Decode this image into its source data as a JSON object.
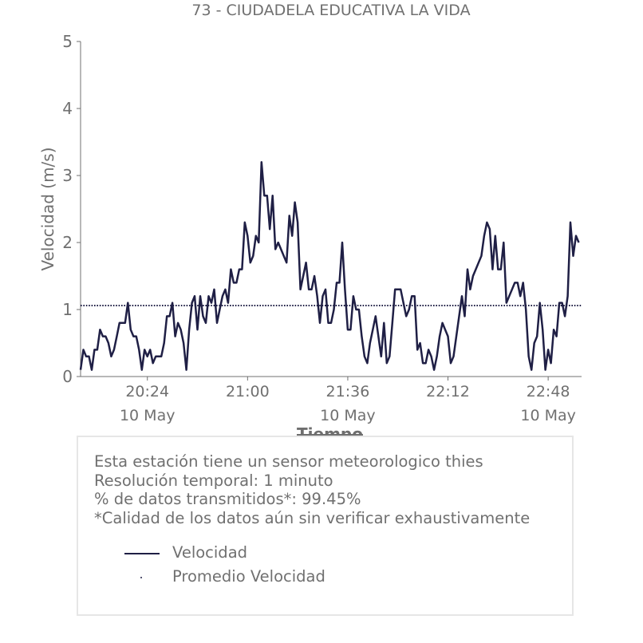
{
  "chart_data": {
    "type": "line",
    "title": "73 - CIUDADELA EDUCATIVA LA VIDA",
    "xlabel": "Tiempo",
    "ylabel": "Velocidad (m/s)",
    "ylim": [
      0,
      5
    ],
    "y_ticks": [
      "0",
      "1",
      "2",
      "3",
      "4",
      "5"
    ],
    "x_ticks": [
      {
        "time": "20:24",
        "date": "10 May"
      },
      {
        "time": "21:00",
        "date": ""
      },
      {
        "time": "21:36",
        "date": "10 May"
      },
      {
        "time": "22:12",
        "date": ""
      },
      {
        "time": "22:48",
        "date": "10 May"
      }
    ],
    "x_range": [
      "20:00",
      "23:00"
    ],
    "grid": false,
    "series": [
      {
        "name": "Velocidad",
        "color": "#1f1f45",
        "x_start": "20:00",
        "x_step_minutes": 1,
        "values": [
          0.1,
          0.4,
          0.3,
          0.3,
          0.1,
          0.4,
          0.4,
          0.7,
          0.6,
          0.6,
          0.5,
          0.3,
          0.4,
          0.6,
          0.8,
          0.8,
          0.8,
          1.1,
          0.7,
          0.6,
          0.6,
          0.4,
          0.1,
          0.4,
          0.3,
          0.4,
          0.2,
          0.3,
          0.3,
          0.3,
          0.5,
          0.9,
          0.9,
          1.1,
          0.6,
          0.8,
          0.7,
          0.5,
          0.1,
          0.7,
          1.1,
          1.2,
          0.7,
          1.2,
          0.9,
          0.8,
          1.2,
          1.1,
          1.3,
          0.8,
          1.0,
          1.2,
          1.3,
          1.1,
          1.6,
          1.4,
          1.4,
          1.6,
          1.6,
          2.3,
          2.1,
          1.7,
          1.8,
          2.1,
          2.0,
          3.2,
          2.7,
          2.7,
          2.2,
          2.7,
          1.9,
          2.0,
          1.9,
          1.8,
          1.7,
          2.4,
          2.1,
          2.6,
          2.3,
          1.3,
          1.5,
          1.7,
          1.3,
          1.3,
          1.5,
          1.2,
          0.8,
          1.2,
          1.3,
          0.8,
          0.8,
          1.0,
          1.4,
          1.4,
          2.0,
          1.3,
          0.7,
          0.7,
          1.2,
          1.0,
          1.0,
          0.6,
          0.3,
          0.2,
          0.5,
          0.7,
          0.9,
          0.6,
          0.3,
          0.8,
          0.2,
          0.3,
          0.8,
          1.3,
          1.3,
          1.3,
          1.1,
          0.9,
          1.0,
          1.2,
          1.2,
          0.4,
          0.5,
          0.2,
          0.2,
          0.4,
          0.3,
          0.1,
          0.3,
          0.6,
          0.8,
          0.7,
          0.6,
          0.2,
          0.3,
          0.6,
          0.9,
          1.2,
          0.9,
          1.6,
          1.3,
          1.5,
          1.6,
          1.7,
          1.8,
          2.1,
          2.3,
          2.2,
          1.6,
          2.1,
          1.6,
          1.6,
          2.0,
          1.1,
          1.2,
          1.3,
          1.4,
          1.4,
          1.2,
          1.4,
          1.0,
          0.3,
          0.1,
          0.5,
          0.6,
          1.1,
          0.7,
          0.1,
          0.4,
          0.2,
          0.7,
          0.6,
          1.1,
          1.1,
          0.9,
          1.2,
          2.3,
          1.8,
          2.1,
          2.0
        ]
      },
      {
        "name": "Promedio Velocidad",
        "color": "#1f1f45",
        "style": "dotted",
        "value": 1.06
      }
    ]
  },
  "info": {
    "lines": [
      "Esta estación tiene un sensor meteorologico thies",
      "Resolución temporal: 1 minuto",
      "% de datos transmitidos*: 99.45%",
      "*Calidad de los datos aún sin verificar exhaustivamente"
    ]
  },
  "legend": {
    "line_label": "Velocidad",
    "avg_label": "Promedio Velocidad"
  }
}
